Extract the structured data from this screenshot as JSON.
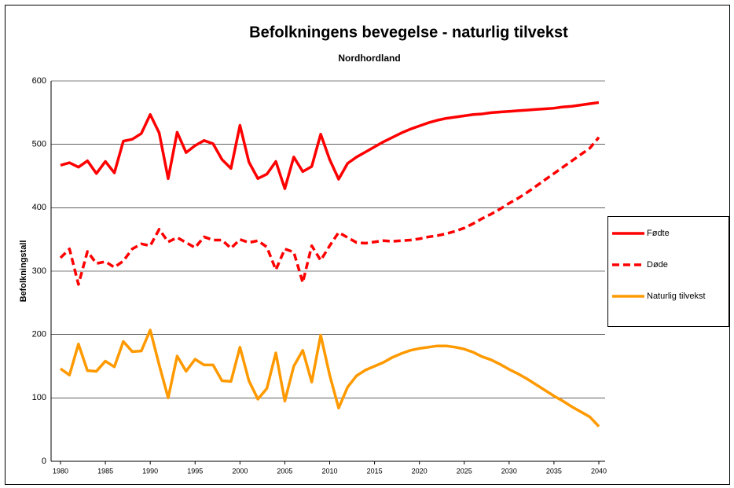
{
  "chart_data": {
    "type": "line",
    "title": "Befolkningens bevegelse - naturlig tilvekst",
    "subtitle": "Nordhordland",
    "y_label": "Befolkningstall",
    "x": [
      1980,
      1981,
      1982,
      1983,
      1984,
      1985,
      1986,
      1987,
      1988,
      1989,
      1990,
      1991,
      1992,
      1993,
      1994,
      1995,
      1996,
      1997,
      1998,
      1999,
      2000,
      2001,
      2002,
      2003,
      2004,
      2005,
      2006,
      2007,
      2008,
      2009,
      2010,
      2011,
      2012,
      2013,
      2014,
      2015,
      2016,
      2017,
      2018,
      2019,
      2020,
      2021,
      2022,
      2023,
      2024,
      2025,
      2026,
      2027,
      2028,
      2029,
      2030,
      2031,
      2032,
      2033,
      2034,
      2035,
      2036,
      2037,
      2038,
      2039,
      2040
    ],
    "series": [
      {
        "name": "Fødte",
        "color": "#ff0000",
        "line_style": "solid",
        "values": [
          467,
          471,
          464,
          474,
          454,
          473,
          455,
          505,
          508,
          517,
          547,
          518,
          446,
          519,
          487,
          498,
          506,
          501,
          476,
          462,
          530,
          472,
          446,
          453,
          473,
          430,
          480,
          457,
          465,
          516,
          476,
          445,
          470,
          480,
          488,
          496,
          504,
          511,
          518,
          524,
          529,
          534,
          538,
          541,
          543,
          545,
          547,
          548,
          550,
          551,
          552,
          553,
          554,
          555,
          556,
          557,
          559,
          560,
          562,
          564,
          566
        ]
      },
      {
        "name": "Døde",
        "color": "#ff0000",
        "line_style": "dashed",
        "values": [
          321,
          335,
          279,
          331,
          312,
          315,
          306,
          316,
          335,
          343,
          340,
          366,
          346,
          353,
          345,
          337,
          354,
          349,
          349,
          336,
          350,
          345,
          348,
          338,
          302,
          335,
          330,
          282,
          340,
          317,
          340,
          361,
          353,
          345,
          344,
          346,
          348,
          347,
          348,
          349,
          351,
          354,
          356,
          359,
          363,
          368,
          375,
          383,
          390,
          398,
          407,
          415,
          424,
          434,
          444,
          454,
          464,
          474,
          484,
          494,
          511
        ]
      },
      {
        "name": "Naturlig tilvekst",
        "color": "#ff9900",
        "line_style": "solid",
        "values": [
          146,
          136,
          185,
          143,
          142,
          158,
          149,
          189,
          173,
          174,
          207,
          152,
          100,
          166,
          142,
          161,
          152,
          152,
          127,
          126,
          180,
          127,
          98,
          115,
          171,
          95,
          150,
          175,
          125,
          199,
          136,
          84,
          117,
          135,
          144,
          150,
          156,
          164,
          170,
          175,
          178,
          180,
          182,
          182,
          180,
          177,
          172,
          165,
          160,
          153,
          145,
          138,
          130,
          121,
          112,
          103,
          95,
          86,
          78,
          70,
          55
        ]
      }
    ],
    "xlim": [
      1979.5,
      2040.5
    ],
    "xticks": [
      1980,
      1985,
      1990,
      1995,
      2000,
      2005,
      2010,
      2015,
      2020,
      2025,
      2030,
      2035,
      2040
    ],
    "ylim": [
      0,
      600
    ],
    "yticks": [
      0,
      100,
      200,
      300,
      400,
      500,
      600
    ],
    "grid": true,
    "legend": "right"
  }
}
